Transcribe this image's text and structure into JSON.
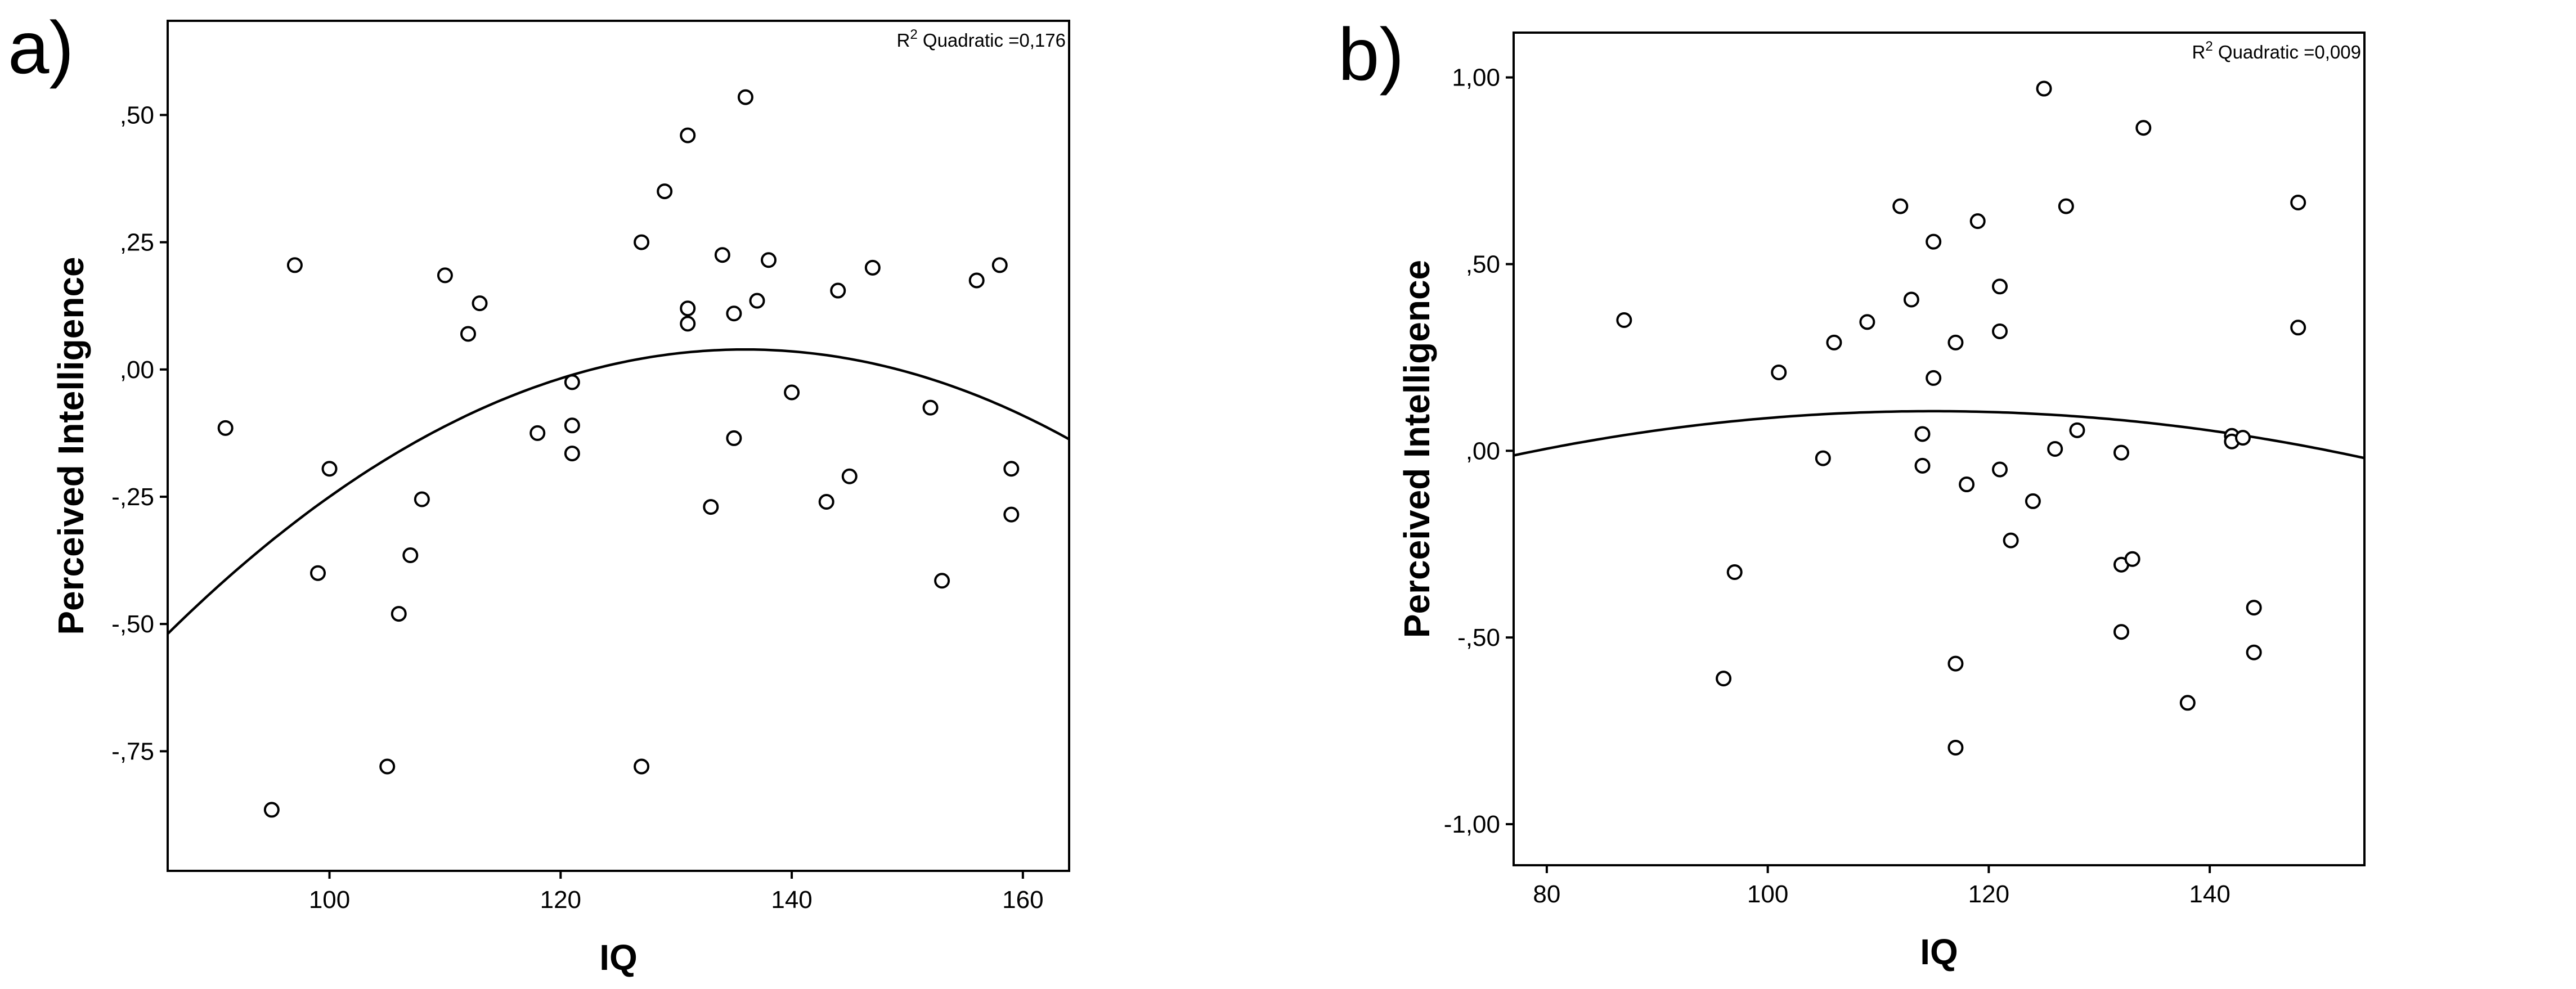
{
  "chart_data": [
    {
      "type": "scatter",
      "panel_label": "a)",
      "xlabel": "IQ",
      "ylabel": "Perceived Intelligence",
      "xlim": [
        86,
        164
      ],
      "ylim": [
        -0.985,
        0.685
      ],
      "xticks": [
        100,
        120,
        140,
        160
      ],
      "xtick_labels": [
        "100",
        "120",
        "140",
        "160"
      ],
      "yticks": [
        -0.75,
        -0.5,
        -0.25,
        0.0,
        0.25,
        0.5
      ],
      "ytick_labels": [
        "-,75",
        "-,50",
        "-,25",
        ",00",
        ",25",
        ",50"
      ],
      "grid": false,
      "fit": {
        "type": "quadratic",
        "label": "R² Quadratic =0,176",
        "label_prefix": "R",
        "label_sup": "2",
        "label_suffix": " Quadratic =0,176",
        "coefficients": [
          -4.1,
          0.0609,
          -0.000224
        ]
      },
      "points": [
        {
          "x": 91,
          "y": -0.115
        },
        {
          "x": 95,
          "y": -0.865
        },
        {
          "x": 97,
          "y": 0.205
        },
        {
          "x": 99,
          "y": -0.4
        },
        {
          "x": 100,
          "y": -0.195
        },
        {
          "x": 105,
          "y": -0.78
        },
        {
          "x": 106,
          "y": -0.48
        },
        {
          "x": 107,
          "y": -0.365
        },
        {
          "x": 108,
          "y": -0.255
        },
        {
          "x": 110,
          "y": 0.185
        },
        {
          "x": 112,
          "y": 0.07
        },
        {
          "x": 113,
          "y": 0.13
        },
        {
          "x": 118,
          "y": -0.125
        },
        {
          "x": 121,
          "y": -0.025
        },
        {
          "x": 121,
          "y": -0.11
        },
        {
          "x": 121,
          "y": -0.165
        },
        {
          "x": 127,
          "y": 0.25
        },
        {
          "x": 127,
          "y": -0.78
        },
        {
          "x": 129,
          "y": 0.35
        },
        {
          "x": 131,
          "y": 0.46
        },
        {
          "x": 131,
          "y": 0.12
        },
        {
          "x": 131,
          "y": 0.09
        },
        {
          "x": 133,
          "y": -0.27
        },
        {
          "x": 134,
          "y": 0.225
        },
        {
          "x": 135,
          "y": 0.11
        },
        {
          "x": 135,
          "y": -0.135
        },
        {
          "x": 136,
          "y": 0.535
        },
        {
          "x": 137,
          "y": 0.135
        },
        {
          "x": 138,
          "y": 0.215
        },
        {
          "x": 140,
          "y": -0.045
        },
        {
          "x": 143,
          "y": -0.26
        },
        {
          "x": 144,
          "y": 0.155
        },
        {
          "x": 145,
          "y": -0.21
        },
        {
          "x": 147,
          "y": 0.2
        },
        {
          "x": 152,
          "y": -0.075
        },
        {
          "x": 153,
          "y": -0.415
        },
        {
          "x": 156,
          "y": 0.175
        },
        {
          "x": 158,
          "y": 0.205
        },
        {
          "x": 159,
          "y": -0.195
        },
        {
          "x": 159,
          "y": -0.285
        }
      ]
    },
    {
      "type": "scatter",
      "panel_label": "b)",
      "xlabel": "IQ",
      "ylabel": "Perceived Intelligence",
      "xlim": [
        77,
        154
      ],
      "ylim": [
        -1.11,
        1.12
      ],
      "xticks": [
        80,
        100,
        120,
        140
      ],
      "xtick_labels": [
        "80",
        "100",
        "120",
        "140"
      ],
      "yticks": [
        -1.0,
        -0.5,
        0.0,
        0.5,
        1.0
      ],
      "ytick_labels": [
        "-1,00",
        "-,50",
        ",00",
        ",50",
        "1,00"
      ],
      "grid": false,
      "fit": {
        "type": "quadratic",
        "label": "R² Quadratic =0,009",
        "label_prefix": "R",
        "label_sup": "2",
        "label_suffix": " Quadratic =0,009",
        "coefficients": [
          -0.9813,
          0.01892,
          -8.23e-05
        ]
      },
      "points": [
        {
          "x": 87,
          "y": 0.35
        },
        {
          "x": 96,
          "y": -0.61
        },
        {
          "x": 97,
          "y": -0.325
        },
        {
          "x": 101,
          "y": 0.21
        },
        {
          "x": 105,
          "y": -0.02
        },
        {
          "x": 106,
          "y": 0.29
        },
        {
          "x": 109,
          "y": 0.345
        },
        {
          "x": 112,
          "y": 0.655
        },
        {
          "x": 113,
          "y": 0.405
        },
        {
          "x": 114,
          "y": 0.045
        },
        {
          "x": 114,
          "y": -0.04
        },
        {
          "x": 115,
          "y": 0.56
        },
        {
          "x": 115,
          "y": 0.195
        },
        {
          "x": 117,
          "y": 0.29
        },
        {
          "x": 117,
          "y": -0.57
        },
        {
          "x": 117,
          "y": -0.795
        },
        {
          "x": 118,
          "y": -0.09
        },
        {
          "x": 119,
          "y": 0.615
        },
        {
          "x": 121,
          "y": 0.44
        },
        {
          "x": 121,
          "y": 0.32
        },
        {
          "x": 121,
          "y": -0.05
        },
        {
          "x": 122,
          "y": -0.24
        },
        {
          "x": 124,
          "y": -0.135
        },
        {
          "x": 125,
          "y": 0.97
        },
        {
          "x": 126,
          "y": 0.005
        },
        {
          "x": 127,
          "y": 0.655
        },
        {
          "x": 128,
          "y": 0.055
        },
        {
          "x": 132,
          "y": -0.005
        },
        {
          "x": 132,
          "y": -0.305
        },
        {
          "x": 132,
          "y": -0.485
        },
        {
          "x": 133,
          "y": -0.29
        },
        {
          "x": 134,
          "y": 0.865
        },
        {
          "x": 138,
          "y": -0.675
        },
        {
          "x": 142,
          "y": 0.04
        },
        {
          "x": 142,
          "y": 0.025
        },
        {
          "x": 143,
          "y": 0.035
        },
        {
          "x": 144,
          "y": -0.42
        },
        {
          "x": 144,
          "y": -0.54
        },
        {
          "x": 148,
          "y": 0.665
        },
        {
          "x": 148,
          "y": 0.33
        }
      ]
    }
  ]
}
